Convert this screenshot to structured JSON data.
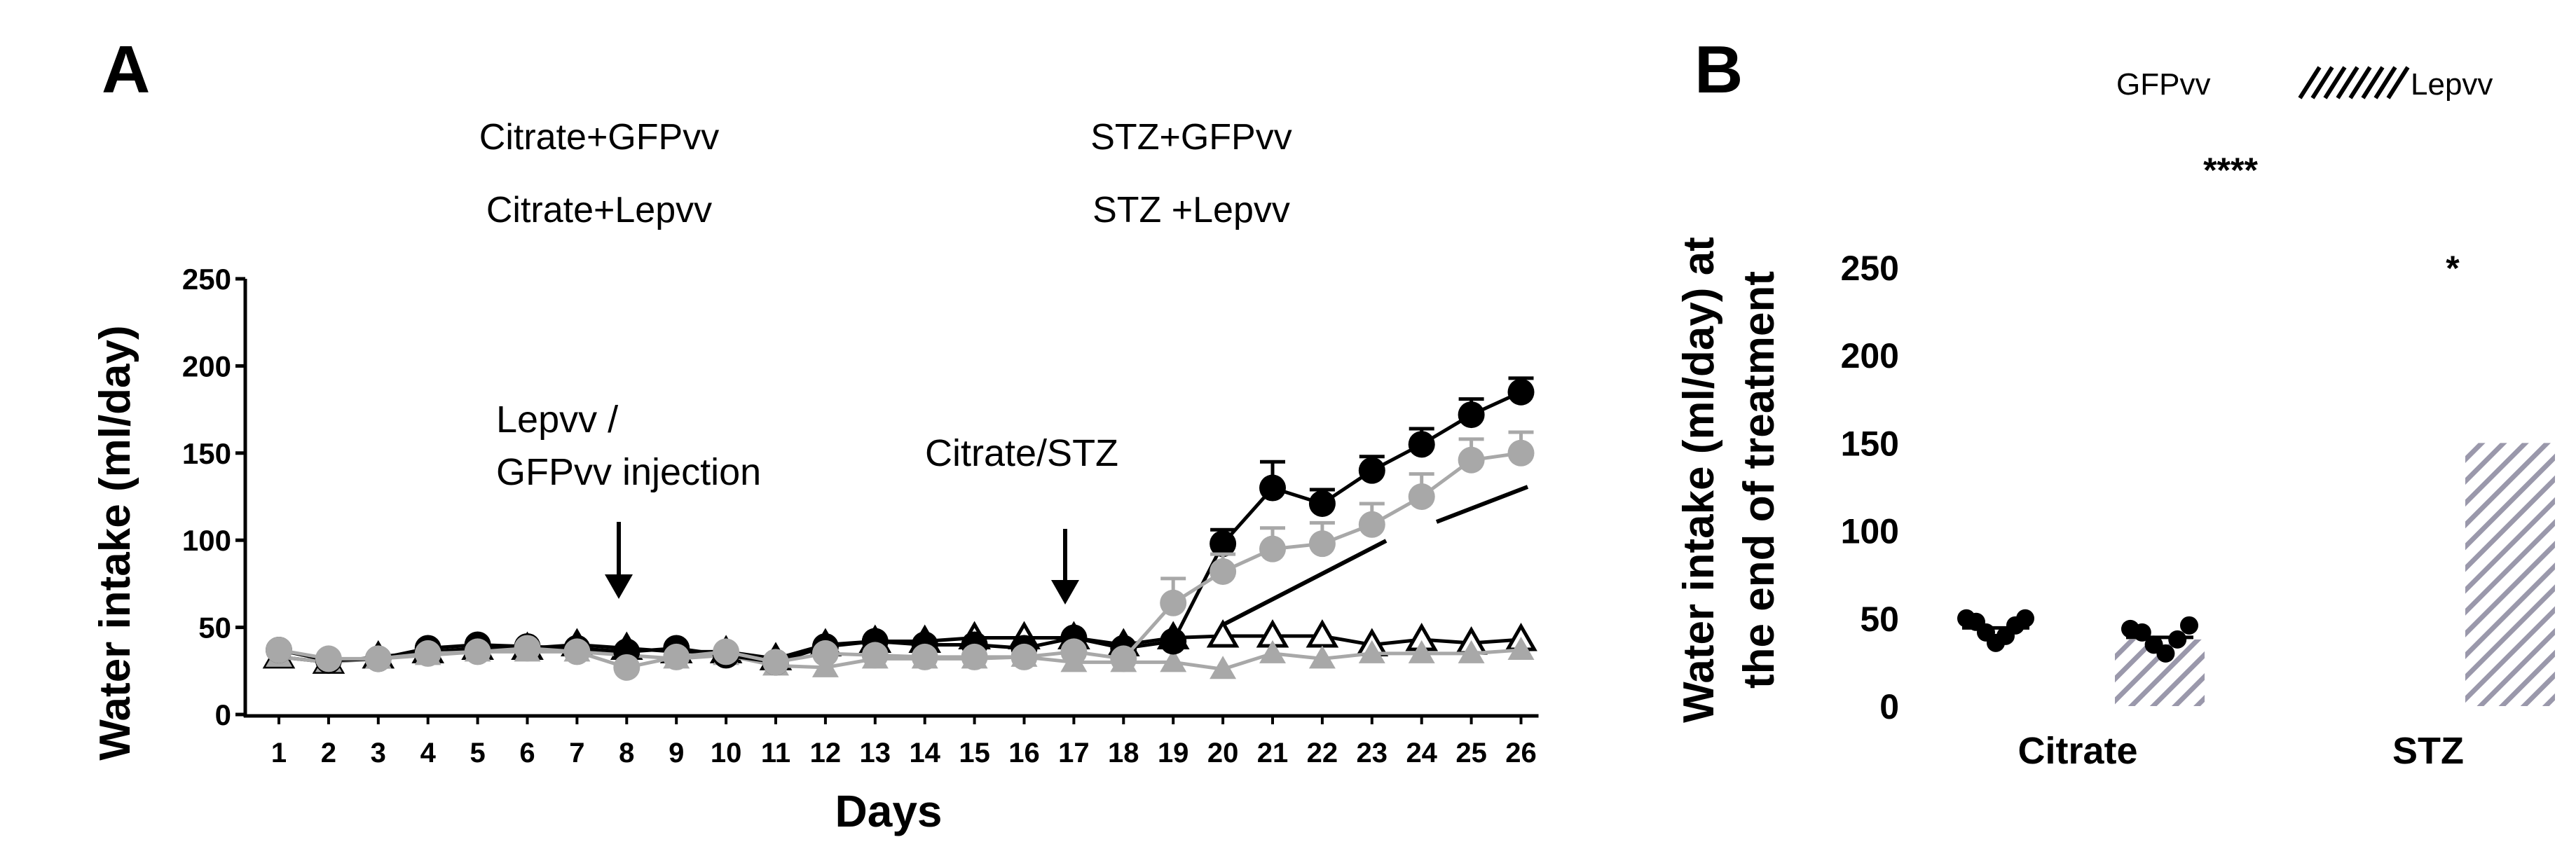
{
  "chart_data": [
    {
      "panel": "A",
      "type": "line",
      "xlabel": "Days",
      "ylabel": "Water intake (ml/day)",
      "ylim": [
        0,
        250
      ],
      "yticks": [
        0,
        50,
        100,
        150,
        200,
        250
      ],
      "x": [
        1,
        2,
        3,
        4,
        5,
        6,
        7,
        8,
        9,
        10,
        11,
        12,
        13,
        14,
        15,
        16,
        17,
        18,
        19,
        20,
        21,
        22,
        23,
        24,
        25,
        26
      ],
      "legend": [
        "Citrate+GFPvv",
        "Citrate+Lepvv",
        "STZ+GFPvv",
        "STZ +Lepvv"
      ],
      "annotations": [
        {
          "text": "Lepvv /",
          "at_day": 8
        },
        {
          "text": "GFPvv injection",
          "at_day": 8
        },
        {
          "text": "Citrate/STZ",
          "at_day": 17
        }
      ],
      "series": [
        {
          "name": "Citrate+GFPvv",
          "marker": "open-triangle",
          "color": "#000000",
          "values": [
            33,
            30,
            33,
            36,
            38,
            38,
            40,
            38,
            36,
            36,
            32,
            40,
            42,
            42,
            44,
            44,
            44,
            40,
            44,
            45,
            45,
            45,
            40,
            43,
            41,
            43
          ]
        },
        {
          "name": "Citrate+Lepvv",
          "marker": "filled-triangle",
          "color": "#a8a8a8",
          "values": [
            33,
            30,
            32,
            34,
            36,
            36,
            36,
            34,
            32,
            34,
            28,
            27,
            32,
            32,
            32,
            33,
            30,
            30,
            30,
            26,
            35,
            32,
            35,
            35,
            35,
            37
          ]
        },
        {
          "name": "STZ+GFPvv",
          "marker": "filled-circle",
          "color": "#000000",
          "values": [
            37,
            31,
            32,
            38,
            40,
            39,
            38,
            36,
            38,
            34,
            30,
            39,
            42,
            40,
            40,
            38,
            44,
            38,
            42,
            98,
            130,
            121,
            140,
            155,
            172,
            185
          ],
          "errors": [
            0,
            0,
            0,
            0,
            0,
            0,
            0,
            0,
            0,
            0,
            0,
            0,
            0,
            0,
            0,
            0,
            0,
            0,
            0,
            8,
            15,
            8,
            8,
            9,
            9,
            8
          ]
        },
        {
          "name": "STZ +Lepvv",
          "marker": "filled-circle",
          "color": "#a8a8a8",
          "values": [
            37,
            32,
            32,
            35,
            36,
            38,
            36,
            27,
            33,
            36,
            30,
            35,
            34,
            33,
            33,
            33,
            36,
            32,
            64,
            82,
            95,
            98,
            109,
            125,
            146,
            150
          ],
          "errors": [
            0,
            0,
            0,
            0,
            0,
            0,
            0,
            0,
            0,
            0,
            0,
            0,
            0,
            0,
            0,
            0,
            0,
            0,
            14,
            10,
            12,
            12,
            12,
            13,
            12,
            12
          ]
        }
      ]
    },
    {
      "panel": "B",
      "type": "bar",
      "ylabel": "Water intake (ml/day) at the end of treatment",
      "ylim": [
        0,
        250
      ],
      "yticks": [
        0,
        50,
        100,
        150,
        200,
        250
      ],
      "categories": [
        "Citrate",
        "STZ"
      ],
      "legend": [
        "GFPvv",
        "Lepvv"
      ],
      "series": [
        {
          "name": "GFPvv",
          "values": [
            null,
            null
          ],
          "points": [
            [
              50,
              48,
              42,
              36,
              40,
              46,
              50
            ],
            []
          ]
        },
        {
          "name": "Lepvv",
          "values": [
            38,
            150
          ],
          "points": [
            [
              44,
              42,
              35,
              30,
              38,
              46
            ],
            []
          ]
        }
      ],
      "significance": [
        "****",
        "*"
      ]
    }
  ],
  "panel_labels": {
    "a": "A",
    "b": "B"
  },
  "colors": {
    "black": "#000000",
    "gray": "#a8a8a8",
    "hatch": "#9a98ab"
  }
}
